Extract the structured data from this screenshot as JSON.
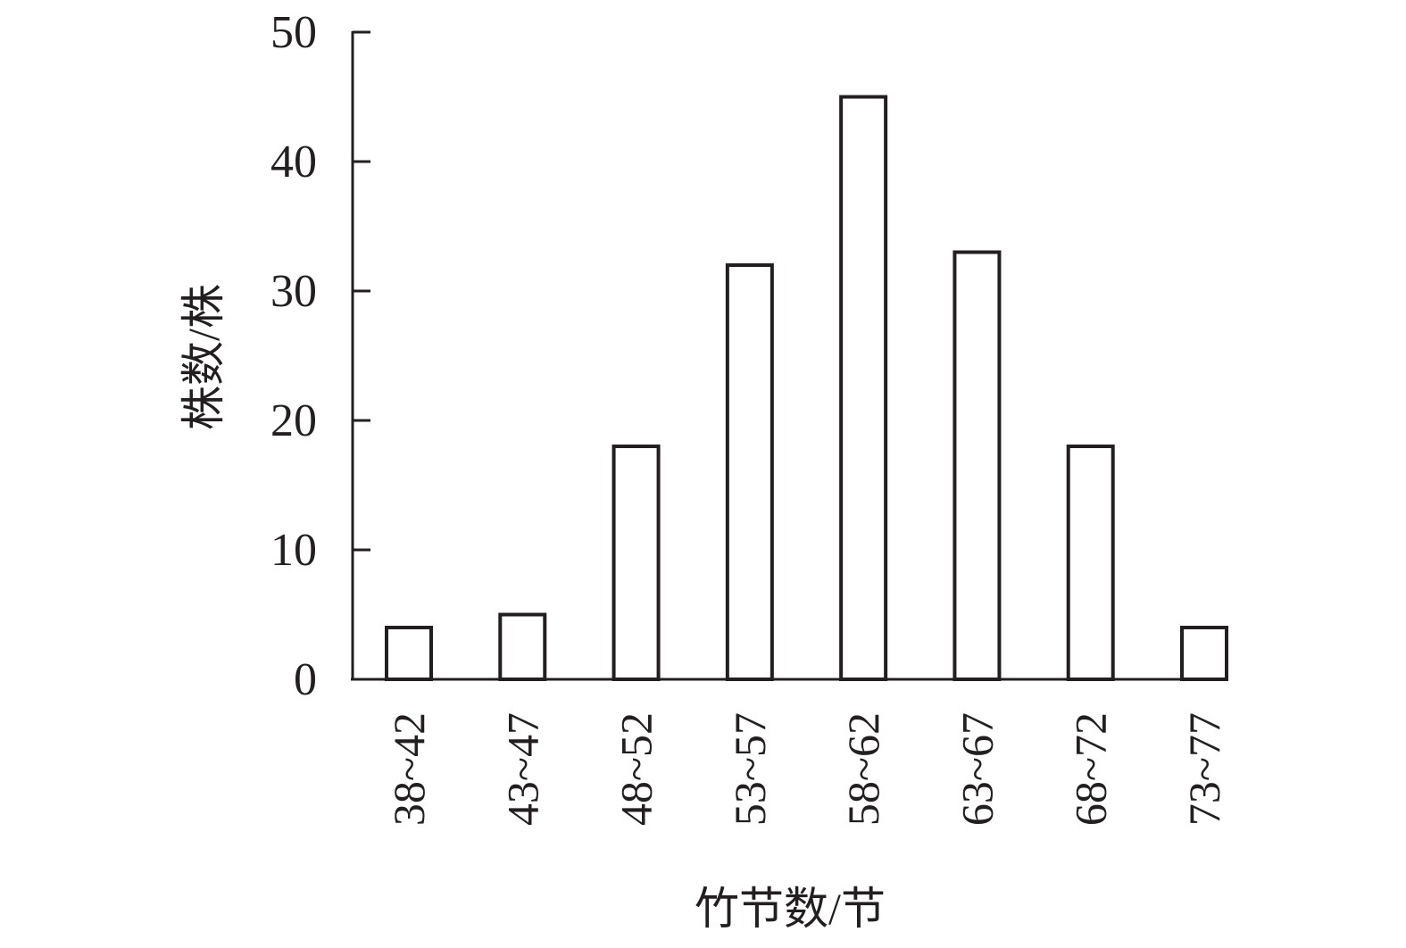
{
  "chart_data": {
    "type": "bar",
    "title": "",
    "xlabel": "竹节数/节",
    "ylabel": "株数/株",
    "categories": [
      "38~42",
      "43~47",
      "48~52",
      "53~57",
      "58~62",
      "63~67",
      "68~72",
      "73~77"
    ],
    "values": [
      4,
      5,
      18,
      32,
      45,
      33,
      18,
      4
    ],
    "ylim": [
      0,
      50
    ],
    "yticks": [
      "0",
      "10",
      "20",
      "30",
      "40",
      "50"
    ],
    "grid": false,
    "bar_fill": "#ffffff",
    "bar_stroke": "#231f20"
  }
}
